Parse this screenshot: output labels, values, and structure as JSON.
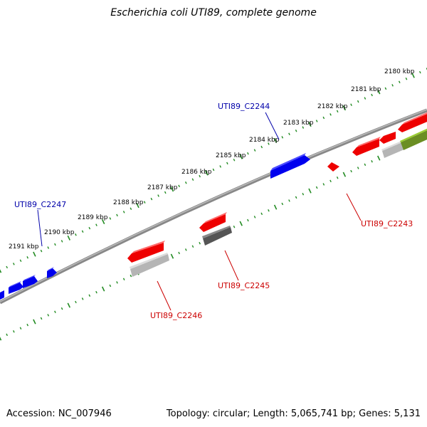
{
  "title": "Escherichia coli UTI89, complete genome",
  "footer": {
    "accession": "Accession: NC_007946",
    "stats": "Topology: circular; Length: 5,065,741 bp; Genes: 5,131"
  },
  "colors": {
    "forward_gene": "#0000ee",
    "reverse_gene": "#ee0000",
    "feature_gray": "#999999",
    "feature_dark": "#555555",
    "feature_olive": "#6b8e23",
    "ticks": "#228b22",
    "backbone": "#777777",
    "label_forward": "#0000aa",
    "label_reverse": "#cc0000"
  },
  "ticks": [
    {
      "label": "2180 kbp",
      "major": true
    },
    {
      "label": "2181 kbp",
      "major": true
    },
    {
      "label": "2182 kbp",
      "major": true
    },
    {
      "label": "2183 kbp",
      "major": true
    },
    {
      "label": "2184 kbp",
      "major": true
    },
    {
      "label": "2185 kbp",
      "major": true
    },
    {
      "label": "2186 kbp",
      "major": true
    },
    {
      "label": "2187 kbp",
      "major": true
    },
    {
      "label": "2188 kbp",
      "major": true
    },
    {
      "label": "2189 kbp",
      "major": true
    },
    {
      "label": "2190 kbp",
      "major": true
    },
    {
      "label": "2191 kbp",
      "major": true
    }
  ],
  "gene_labels": [
    {
      "label": "UTI89_C2244",
      "strand": "forward"
    },
    {
      "label": "UTI89_C2247",
      "strand": "forward"
    },
    {
      "label": "UTI89_C2243",
      "strand": "reverse"
    },
    {
      "label": "UTI89_C2245",
      "strand": "reverse"
    },
    {
      "label": "UTI89_C2246",
      "strand": "reverse"
    }
  ]
}
